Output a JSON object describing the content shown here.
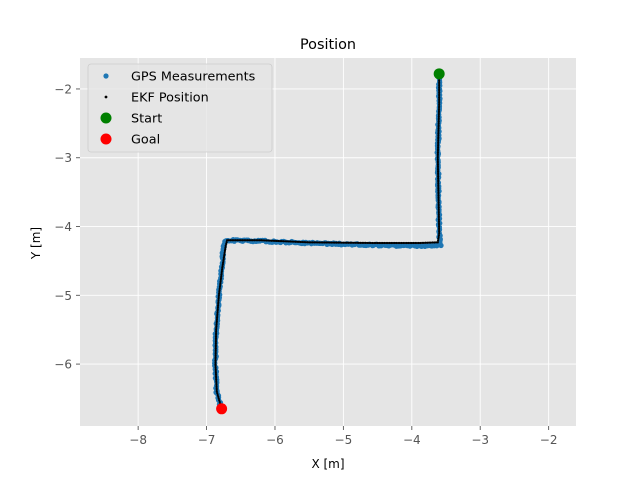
{
  "chart_data": {
    "type": "scatter",
    "title": "Position",
    "xlabel": "X [m]",
    "ylabel": "Y [m]",
    "xlim": [
      -8.85,
      -1.6
    ],
    "ylim": [
      -6.9,
      -1.55
    ],
    "xticks": [
      -8,
      -7,
      -6,
      -5,
      -4,
      -3,
      -2
    ],
    "yticks": [
      -2,
      -3,
      -4,
      -5,
      -6
    ],
    "grid": true,
    "style": "ggplot",
    "legend_position": "top-left",
    "legend": [
      {
        "label": "GPS Measurements",
        "marker": "dot",
        "color": "#1f77b4"
      },
      {
        "label": "EKF Position",
        "marker": "small-dot",
        "color": "#000000"
      },
      {
        "label": "Start",
        "marker": "circle",
        "color": "#008000"
      },
      {
        "label": "Goal",
        "marker": "circle",
        "color": "#ff0000"
      }
    ],
    "series": [
      {
        "name": "GPS Measurements",
        "color": "#1f77b4",
        "path": [
          [
            -3.6,
            -1.78
          ],
          [
            -3.6,
            -2.2
          ],
          [
            -3.62,
            -3.0
          ],
          [
            -3.6,
            -4.1
          ],
          [
            -3.58,
            -4.27
          ],
          [
            -3.9,
            -4.28
          ],
          [
            -4.5,
            -4.27
          ],
          [
            -5.5,
            -4.24
          ],
          [
            -6.2,
            -4.21
          ],
          [
            -6.72,
            -4.2
          ],
          [
            -6.75,
            -4.28
          ],
          [
            -6.78,
            -4.6
          ],
          [
            -6.82,
            -5.0
          ],
          [
            -6.86,
            -5.5
          ],
          [
            -6.87,
            -6.0
          ],
          [
            -6.85,
            -6.4
          ],
          [
            -6.78,
            -6.65
          ]
        ]
      },
      {
        "name": "EKF Position",
        "color": "#000000",
        "path": [
          [
            -3.6,
            -1.78
          ],
          [
            -3.6,
            -2.2
          ],
          [
            -3.62,
            -3.0
          ],
          [
            -3.6,
            -4.1
          ],
          [
            -3.62,
            -4.23
          ],
          [
            -3.9,
            -4.24
          ],
          [
            -4.5,
            -4.24
          ],
          [
            -5.5,
            -4.23
          ],
          [
            -6.2,
            -4.2
          ],
          [
            -6.7,
            -4.2
          ],
          [
            -6.72,
            -4.28
          ],
          [
            -6.77,
            -4.6
          ],
          [
            -6.82,
            -5.0
          ],
          [
            -6.86,
            -5.5
          ],
          [
            -6.87,
            -6.0
          ],
          [
            -6.85,
            -6.4
          ],
          [
            -6.78,
            -6.65
          ]
        ]
      }
    ],
    "points": [
      {
        "name": "Start",
        "x": -3.6,
        "y": -1.78,
        "color": "#008000"
      },
      {
        "name": "Goal",
        "x": -6.78,
        "y": -6.65,
        "color": "#ff0000"
      }
    ]
  }
}
